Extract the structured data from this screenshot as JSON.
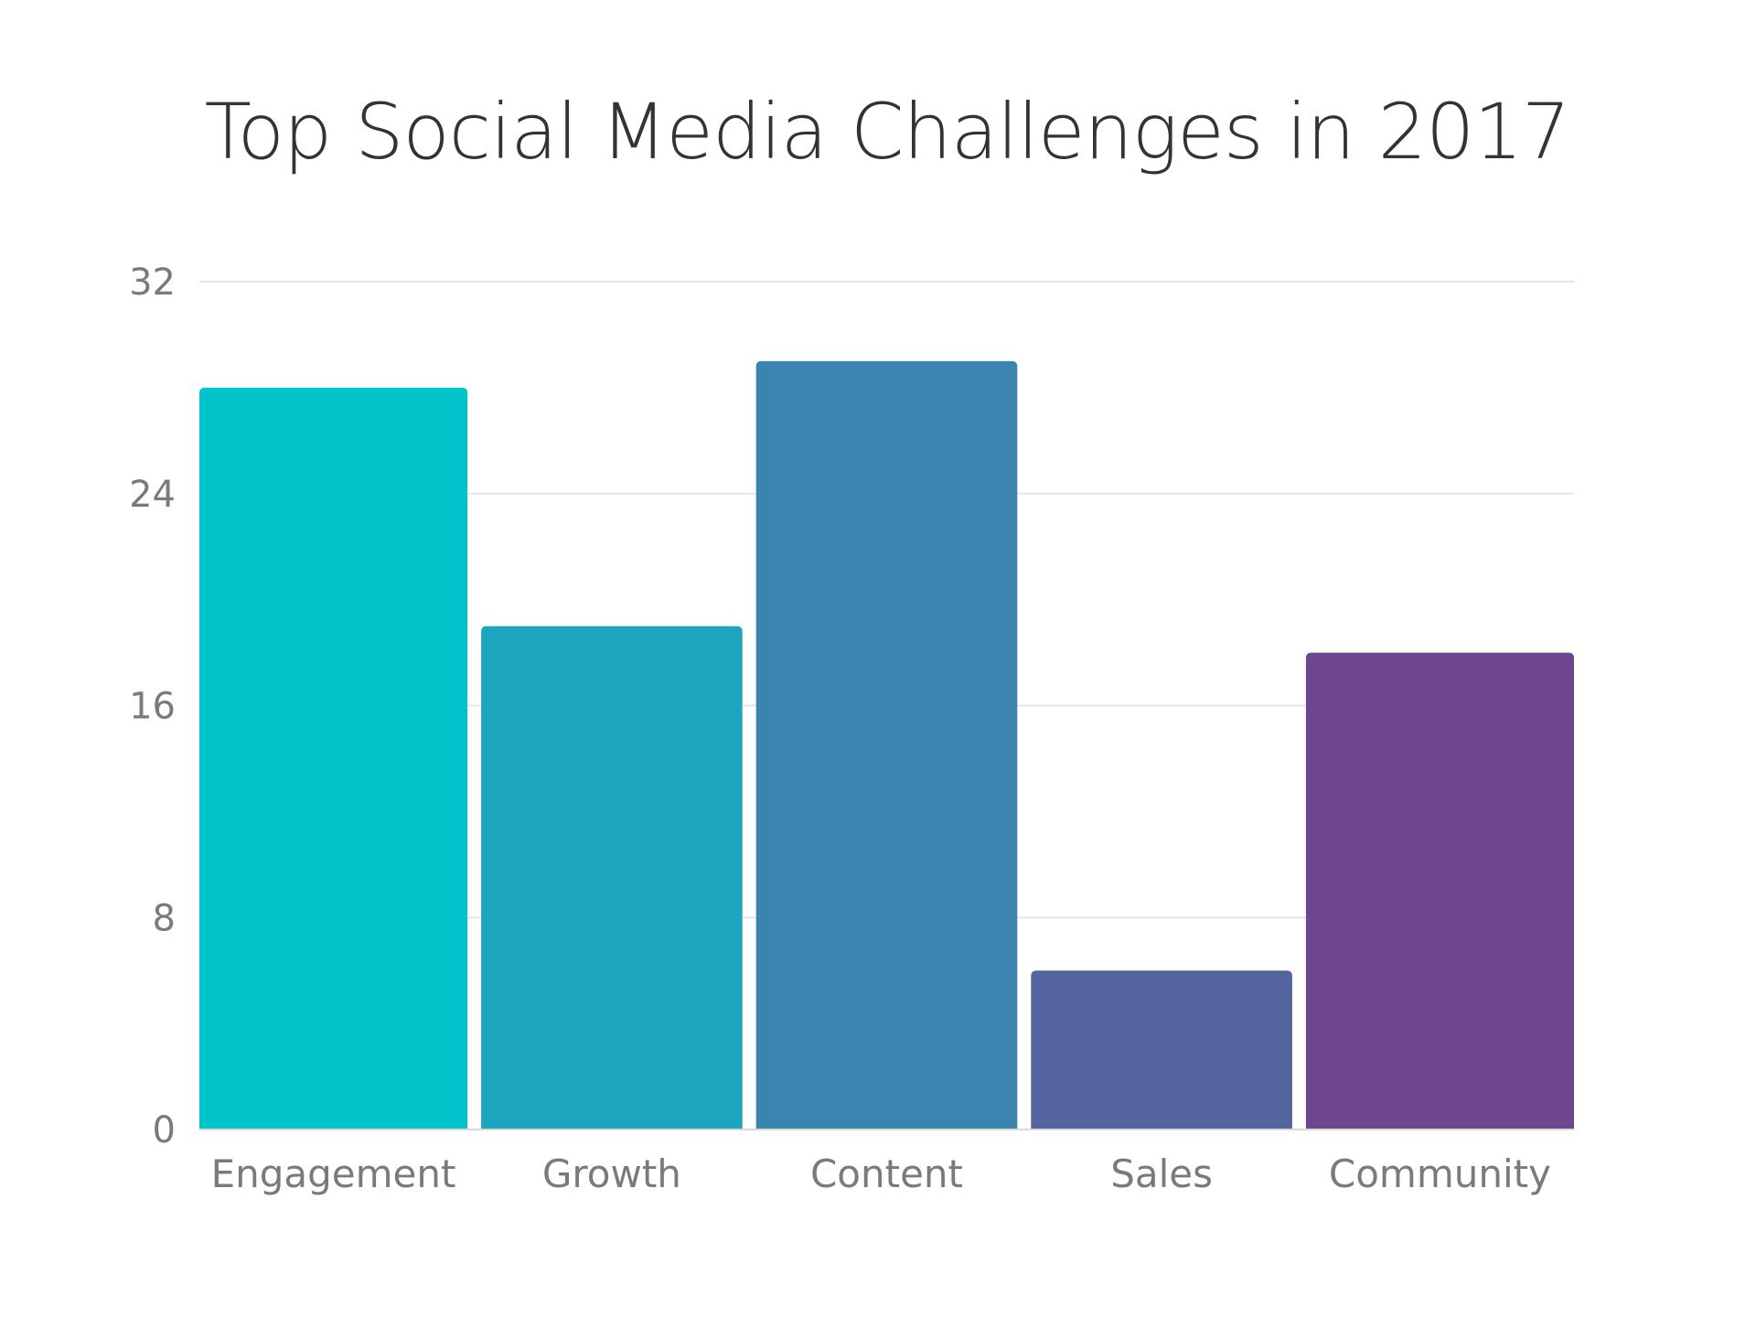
{
  "chart_data": {
    "type": "bar",
    "title": "Top Social Media Challenges in 2017",
    "categories": [
      "Engagement",
      "Growth",
      "Content",
      "Sales",
      "Community"
    ],
    "values": [
      28,
      19,
      29,
      6,
      18
    ],
    "colors": [
      "#00C4CA",
      "#1DA4BE",
      "#3A85B0",
      "#53649F",
      "#6E4690"
    ],
    "xlabel": "",
    "ylabel": "",
    "ylim": [
      0,
      32
    ],
    "yticks": [
      0,
      8,
      16,
      24,
      32
    ],
    "grid": true,
    "gridColor": "#e6e6e6"
  }
}
